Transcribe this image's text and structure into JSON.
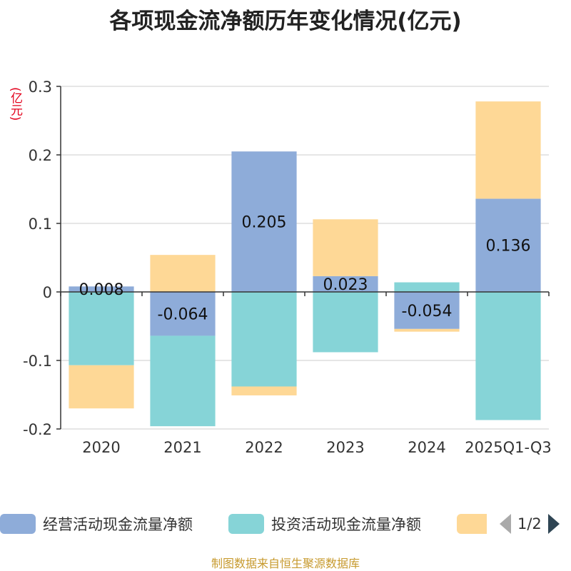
{
  "title": "各项现金流净额历年变化情况(亿元)",
  "unit": "(亿元)",
  "source": "制图数据来自恒生聚源数据库",
  "legend": {
    "items": [
      {
        "name": "经营活动现金流量净额",
        "color": "#8eacd9"
      },
      {
        "name": "投资活动现金流量净额",
        "color": "#86d4d7"
      },
      {
        "name": "",
        "color": "#fed896"
      }
    ],
    "pager": "1/2"
  },
  "chart_data": {
    "type": "bar",
    "stacked": true,
    "categories": [
      "2020",
      "2021",
      "2022",
      "2023",
      "2024",
      "2025Q1-Q3"
    ],
    "series": [
      {
        "name": "经营活动现金流量净额",
        "color": "#8eacd9",
        "values": [
          0.008,
          -0.064,
          0.205,
          0.023,
          -0.054,
          0.136
        ],
        "labels": [
          "0.008",
          "-0.064",
          "0.205",
          "0.023",
          "-0.054",
          "0.136"
        ]
      },
      {
        "name": "投资活动现金流量净额",
        "color": "#86d4d7",
        "values": [
          -0.107,
          -0.132,
          -0.138,
          -0.088,
          0.014,
          -0.187
        ]
      },
      {
        "color": "#fed896",
        "values": [
          -0.063,
          0.054,
          -0.013,
          0.083,
          -0.004,
          0.142
        ]
      }
    ],
    "yticks": [
      0.3,
      0.2,
      0.1,
      0,
      -0.1,
      -0.2
    ],
    "ytick_labels": [
      "0.3",
      "0.2",
      "0.1",
      "0",
      "-0.1",
      "-0.2"
    ],
    "ylim": [
      -0.2,
      0.3
    ],
    "grid": true,
    "legend_position": "bottom"
  }
}
